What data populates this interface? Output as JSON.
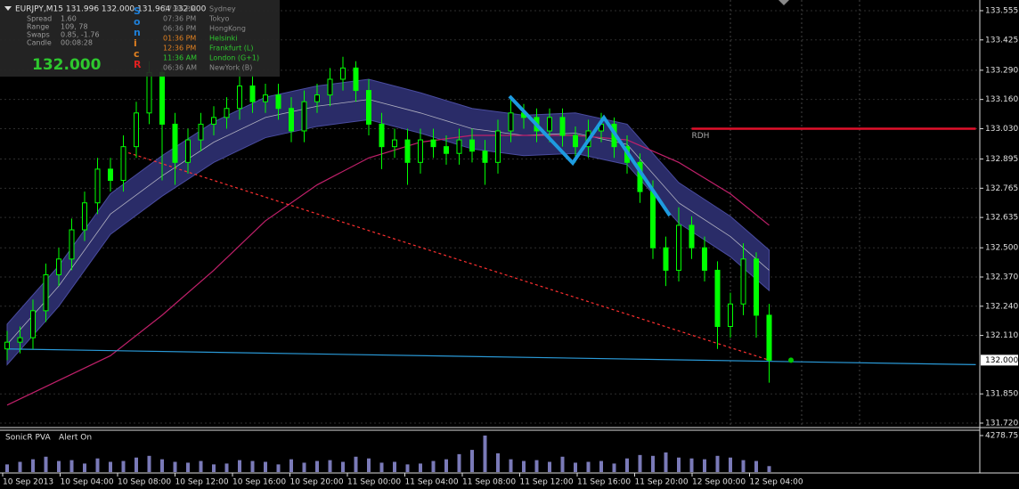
{
  "chart_data": {
    "type": "candlestick",
    "title": "EURJPY,M15  131.996 132.000 131.964 132.000",
    "xtick_labels": [
      "10 Sep 2013",
      "10 Sep 04:00",
      "10 Sep 08:00",
      "10 Sep 12:00",
      "10 Sep 16:00",
      "10 Sep 20:00",
      "11 Sep 00:00",
      "11 Sep 04:00",
      "11 Sep 08:00",
      "11 Sep 12:00",
      "11 Sep 16:00",
      "11 Sep 20:00",
      "12 Sep 00:00",
      "12 Sep 04:00"
    ],
    "ylim": [
      131.72,
      133.555
    ],
    "yticks": [
      133.555,
      133.425,
      {
        "value": 133.29,
        "label": "133.290"
      },
      {
        "value": 133.16,
        "label": "133.160"
      },
      {
        "value": 133.03,
        "label": "133.030"
      },
      132.895,
      132.765,
      132.635,
      {
        "value": 132.5,
        "label": "132.500"
      },
      {
        "value": 132.37,
        "label": "132.370"
      },
      {
        "value": 132.24,
        "label": "132.240"
      },
      {
        "value": 132.11,
        "label": "132.110"
      },
      {
        "value": 131.85,
        "label": "131.850"
      },
      {
        "value": 131.72,
        "label": "131.720"
      }
    ],
    "grid": true,
    "candles": {
      "color": "#00ff00",
      "open": [
        132.05,
        132.08,
        132.1,
        132.22,
        132.38,
        132.45,
        132.58,
        132.7,
        132.85,
        132.8,
        132.95,
        133.1,
        133.28,
        133.05,
        132.88,
        132.98,
        133.05,
        133.08,
        133.12,
        133.22,
        133.15,
        133.18,
        133.12,
        133.02,
        133.15,
        133.18,
        133.25,
        133.3,
        133.2,
        133.05,
        132.95,
        132.98,
        132.88,
        132.98,
        132.95,
        132.92,
        132.98,
        132.93,
        132.88,
        133.02,
        133.1,
        133.08,
        133.02,
        133.08,
        133.0,
        132.95,
        133.02,
        133.05,
        132.95,
        132.88,
        132.75,
        132.5,
        132.4,
        132.6,
        132.5,
        132.4,
        132.15,
        132.25,
        132.45,
        132.2
      ],
      "high": [
        132.13,
        132.15,
        132.27,
        132.43,
        132.5,
        132.63,
        132.75,
        132.9,
        132.9,
        133.0,
        133.15,
        133.33,
        133.3,
        133.1,
        133.03,
        133.1,
        133.13,
        133.17,
        133.3,
        133.27,
        133.23,
        133.23,
        133.17,
        133.2,
        133.23,
        133.3,
        133.35,
        133.33,
        133.25,
        133.1,
        133.03,
        133.03,
        133.03,
        133.03,
        133.0,
        133.03,
        133.03,
        132.98,
        133.07,
        133.17,
        133.14,
        133.12,
        133.12,
        133.12,
        133.04,
        133.07,
        133.1,
        133.08,
        133.0,
        132.92,
        132.8,
        132.55,
        132.68,
        132.64,
        132.55,
        132.44,
        132.3,
        132.52,
        132.48,
        132.25
      ],
      "low": [
        132.0,
        132.03,
        132.05,
        132.17,
        132.33,
        132.4,
        132.53,
        132.65,
        132.75,
        132.75,
        132.9,
        133.05,
        132.8,
        132.78,
        132.83,
        132.93,
        133.0,
        133.03,
        133.07,
        133.1,
        133.1,
        133.07,
        132.97,
        132.97,
        133.1,
        133.13,
        133.2,
        133.15,
        133.0,
        132.85,
        132.9,
        132.78,
        132.83,
        132.9,
        132.87,
        132.87,
        132.88,
        132.78,
        132.83,
        132.97,
        133.03,
        132.97,
        132.97,
        132.95,
        132.88,
        132.9,
        132.97,
        132.9,
        132.83,
        132.7,
        132.45,
        132.33,
        132.35,
        132.45,
        132.35,
        132.05,
        132.1,
        132.2,
        132.1,
        131.9
      ],
      "close": [
        132.08,
        132.1,
        132.22,
        132.38,
        132.45,
        132.58,
        132.7,
        132.85,
        132.8,
        132.95,
        133.1,
        133.28,
        133.05,
        132.88,
        132.98,
        133.05,
        133.08,
        133.12,
        133.22,
        133.15,
        133.18,
        133.12,
        133.02,
        133.15,
        133.18,
        133.25,
        133.3,
        133.2,
        133.05,
        132.95,
        132.98,
        132.88,
        132.98,
        132.95,
        132.92,
        132.98,
        132.93,
        132.88,
        133.02,
        133.1,
        133.08,
        133.02,
        133.08,
        133.0,
        132.95,
        133.02,
        133.05,
        132.95,
        132.88,
        132.75,
        132.5,
        132.4,
        132.6,
        132.5,
        132.4,
        132.15,
        132.25,
        132.45,
        132.2,
        132.0
      ]
    },
    "last_price": {
      "value": 132,
      "label": "132.000",
      "color": "#00c800"
    },
    "overlays": [
      {
        "style": "band",
        "color": "#2a2c68",
        "mid_color": "#b0b0c0",
        "x": [
          0,
          4,
          8,
          12,
          16,
          20,
          24,
          28,
          32,
          36,
          40,
          44,
          48,
          52,
          56,
          59
        ],
        "upper": [
          132.16,
          132.42,
          132.74,
          132.91,
          133.06,
          133.17,
          133.22,
          133.25,
          133.19,
          133.12,
          133.09,
          133.1,
          133.05,
          132.79,
          132.64,
          132.49
        ],
        "middle": [
          132.07,
          132.33,
          132.65,
          132.82,
          132.97,
          133.08,
          133.13,
          133.16,
          133.1,
          133.03,
          133.0,
          133.01,
          132.96,
          132.7,
          132.55,
          132.4
        ],
        "lower": [
          131.98,
          132.24,
          132.56,
          132.73,
          132.88,
          132.99,
          133.04,
          133.07,
          133.01,
          132.94,
          132.91,
          132.92,
          132.87,
          132.61,
          132.46,
          132.31
        ]
      },
      {
        "style": "line",
        "color": "#c0206a",
        "x": [
          0,
          8,
          12,
          16,
          20,
          24,
          28,
          32,
          36,
          40,
          44,
          48,
          52,
          56,
          59
        ],
        "values": [
          131.8,
          132.02,
          132.2,
          132.4,
          132.62,
          132.78,
          132.9,
          132.97,
          133.0,
          133.0,
          133.0,
          132.98,
          132.88,
          132.74,
          132.6
        ]
      },
      {
        "style": "line",
        "color": "#2a9ad8",
        "x": [
          0,
          75
        ],
        "values": [
          132.05,
          131.98
        ]
      },
      {
        "style": "dotted",
        "color": "#ff3030",
        "x": [
          9,
          59
        ],
        "values": [
          132.93,
          132.0
        ]
      }
    ],
    "levels": [
      {
        "label": "RDH",
        "value": 133.03,
        "x": [
          53,
          75
        ],
        "color": "#e0102a"
      }
    ],
    "volume": {
      "label": "SonicR PVA",
      "alert": "Alert On",
      "color": "#7a7ab8",
      "ylim": [
        0,
        4278.75
      ],
      "yticks": [
        4278.75
      ],
      "values": [
        900,
        1200,
        1500,
        1800,
        1300,
        1400,
        1000,
        1600,
        1200,
        1300,
        1700,
        1900,
        1500,
        1200,
        1100,
        1300,
        900,
        1000,
        1400,
        1300,
        1200,
        900,
        1500,
        1100,
        1300,
        1400,
        1200,
        1800,
        1600,
        1100,
        1200,
        900,
        1000,
        1300,
        1500,
        2100,
        2600,
        4278.75,
        2200,
        1500,
        1300,
        1400,
        1200,
        1800,
        1100,
        1200,
        1300,
        1000,
        1600,
        2000,
        1900,
        2300,
        1700,
        1600,
        1500,
        1900,
        1700,
        1400,
        1300,
        700
      ]
    }
  },
  "info_panel": {
    "rows": [
      [
        "Spread",
        "1.60"
      ],
      [
        "Range",
        "109, 78"
      ],
      [
        "Swaps",
        "0.85, -1.76"
      ],
      [
        "Candle",
        "00:08:28"
      ]
    ],
    "price": "132.000",
    "brand": [
      "S",
      "o",
      "n",
      "i",
      "c",
      "R"
    ],
    "sessions": [
      [
        "07:36 PM",
        "Sydney"
      ],
      [
        "07:36 PM",
        "Tokyo"
      ],
      [
        "06:36 PM",
        "HongKong"
      ],
      [
        "01:36 PM",
        "Helsinki"
      ],
      [
        "12:36 PM",
        "Frankfurt (L)"
      ],
      [
        "11:36 AM",
        "London (G+1)"
      ],
      [
        "06:36 AM",
        "NewYork (B)"
      ]
    ]
  }
}
